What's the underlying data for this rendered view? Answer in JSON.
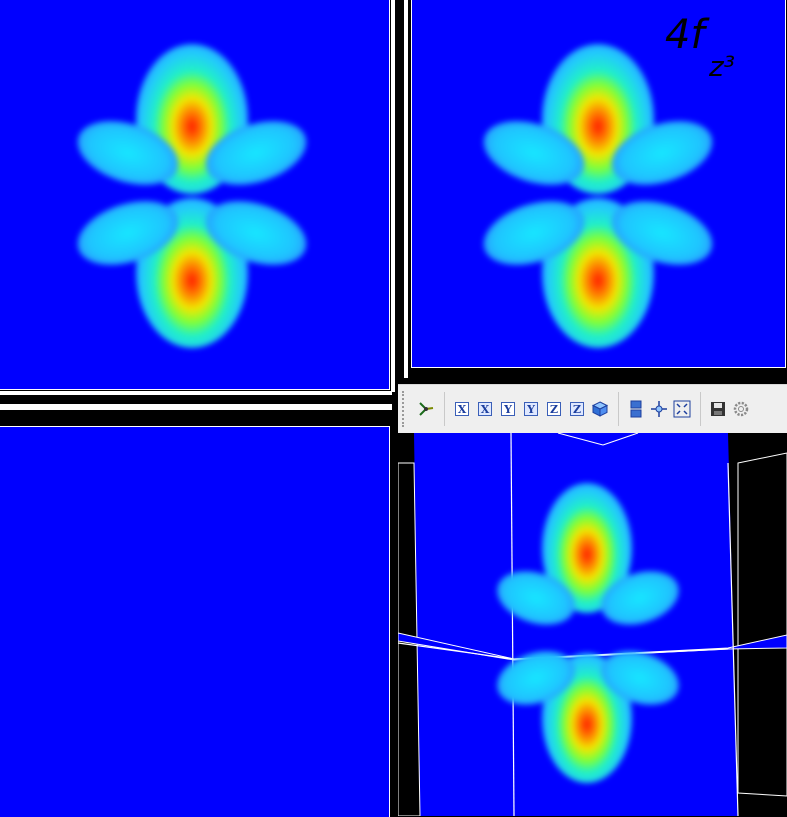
{
  "annotation": {
    "orbital": "4f",
    "subscript": "z³"
  },
  "views": {
    "top_left": "slice-view",
    "top_right": "slice-view",
    "bottom_left": "slice-view-empty",
    "bottom_right": "3d-view"
  },
  "toolbar": {
    "tools": [
      {
        "name": "reset-orientation",
        "icon": "axes-icon"
      },
      {
        "name": "view-x-plus",
        "label": "X"
      },
      {
        "name": "view-x-minus",
        "label": "X"
      },
      {
        "name": "view-y-plus",
        "label": "Y"
      },
      {
        "name": "view-y-minus",
        "label": "Y"
      },
      {
        "name": "view-z-plus",
        "label": "Z"
      },
      {
        "name": "view-z-minus",
        "label": "Z"
      },
      {
        "name": "isometric",
        "icon": "cube-icon"
      },
      {
        "name": "layout",
        "icon": "layout-icon"
      },
      {
        "name": "center",
        "icon": "crosshair-icon"
      },
      {
        "name": "fit",
        "icon": "fit-icon"
      },
      {
        "name": "save",
        "icon": "save-icon"
      },
      {
        "name": "settings",
        "icon": "gear-icon"
      }
    ]
  },
  "colors": {
    "background": "#0000ff",
    "hot": "#ff1a00",
    "warm": "#f2e600",
    "cool": "#22c8ff"
  }
}
